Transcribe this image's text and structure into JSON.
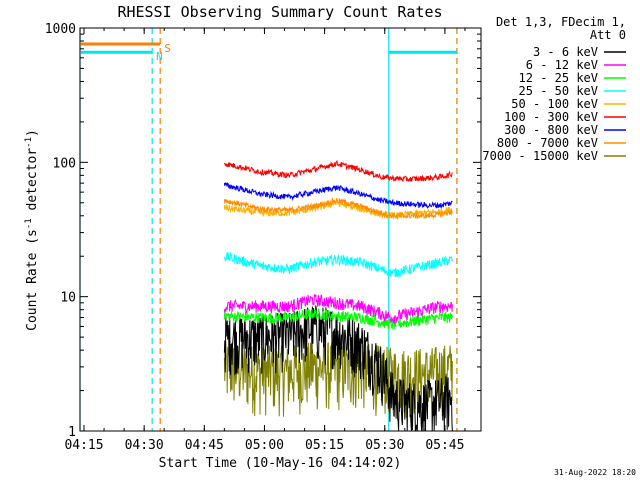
{
  "chart_data": {
    "type": "line",
    "title": "RHESSI Observing Summary Count Rates",
    "xlabel": "Start Time (10-May-16 04:14:02)",
    "ylabel": "Count Rate (s",
    "ylabel_sup": "-1",
    "ylabel_mid": " detector",
    "ylabel_end": ")",
    "yscale": "log",
    "xlim_minutes": [
      0,
      100
    ],
    "ylim": [
      1,
      1000
    ],
    "x_ticks": [
      {
        "label": "04:15",
        "minute": 1
      },
      {
        "label": "04:30",
        "minute": 16
      },
      {
        "label": "04:45",
        "minute": 31
      },
      {
        "label": "05:00",
        "minute": 46
      },
      {
        "label": "05:15",
        "minute": 61
      },
      {
        "label": "05:30",
        "minute": 76
      },
      {
        "label": "05:45",
        "minute": 91
      }
    ],
    "y_ticks": [
      {
        "label": "1",
        "value": 1
      },
      {
        "label": "10",
        "value": 10
      },
      {
        "label": "100",
        "value": 100
      },
      {
        "label": "1000",
        "value": 1000
      }
    ],
    "legend_header": [
      "Det 1,3, FDecim 1,",
      "Att 0"
    ],
    "legend_position": "right",
    "series": [
      {
        "name": "3 - 6 keV",
        "color": "#000000",
        "x": [
          36,
          45,
          52,
          58,
          64,
          70,
          75,
          78,
          82,
          86,
          90,
          93
        ],
        "y": [
          5,
          5,
          5.2,
          6,
          5.5,
          4.5,
          3,
          1.8,
          1.6,
          1.6,
          1.7,
          1.8
        ]
      },
      {
        "name": "6 - 12 keV",
        "color": "#ff00ff",
        "x": [
          36,
          45,
          52,
          58,
          64,
          70,
          75,
          78,
          82,
          86,
          90,
          93
        ],
        "y": [
          8.5,
          8.5,
          8.5,
          9.5,
          9,
          8.5,
          7.5,
          7,
          7.5,
          8,
          8.5,
          8.5
        ]
      },
      {
        "name": "12 - 25 keV",
        "color": "#00ff00",
        "x": [
          36,
          45,
          52,
          58,
          64,
          70,
          75,
          78,
          82,
          86,
          90,
          93
        ],
        "y": [
          7.2,
          7,
          7,
          7.5,
          7.2,
          7,
          6.5,
          6.2,
          6.5,
          6.8,
          7,
          7
        ]
      },
      {
        "name": "25 - 50 keV",
        "color": "#00ffff",
        "x": [
          36,
          45,
          52,
          58,
          64,
          70,
          75,
          78,
          82,
          86,
          90,
          93
        ],
        "y": [
          20,
          17,
          16,
          18,
          19,
          18,
          16,
          15,
          16,
          17,
          18,
          19
        ]
      },
      {
        "name": "50 - 100 keV",
        "color": "#ffb000",
        "x": [
          36,
          45,
          52,
          58,
          64,
          70,
          75,
          78,
          82,
          86,
          90,
          93
        ],
        "y": [
          46,
          42,
          42,
          45,
          50,
          45,
          41,
          40,
          41,
          42,
          43,
          45
        ]
      },
      {
        "name": "100 - 300 keV",
        "color": "#ff0000",
        "x": [
          36,
          45,
          52,
          58,
          64,
          70,
          75,
          78,
          82,
          86,
          90,
          93
        ],
        "y": [
          98,
          85,
          80,
          88,
          98,
          88,
          78,
          76,
          75,
          76,
          78,
          82
        ]
      },
      {
        "name": "300 - 800 keV",
        "color": "#0000ff",
        "x": [
          36,
          45,
          52,
          58,
          64,
          70,
          75,
          78,
          82,
          86,
          90,
          93
        ],
        "y": [
          68,
          58,
          55,
          60,
          65,
          58,
          52,
          50,
          49,
          48,
          48,
          50
        ]
      },
      {
        "name": "800 - 7000 keV",
        "color": "#ff8c00",
        "x": [
          36,
          45,
          52,
          58,
          64,
          70,
          75,
          78,
          82,
          86,
          90,
          93
        ],
        "y": [
          52,
          45,
          44,
          47,
          52,
          47,
          42,
          40,
          40,
          40,
          41,
          43
        ]
      },
      {
        "name": "7000 - 15000 keV",
        "color": "#808000",
        "x": [
          36,
          45,
          52,
          58,
          64,
          70,
          75,
          78,
          82,
          86,
          90,
          93
        ],
        "y": [
          3,
          2.8,
          2.8,
          3,
          3,
          3,
          2.8,
          2.7,
          2.7,
          2.7,
          2.8,
          3
        ]
      }
    ],
    "flags": [
      {
        "label": "S",
        "color": "#ff7f00",
        "level": 760,
        "x_start": 0,
        "x_end": 20
      },
      {
        "label": "N",
        "color": "#00e5e5",
        "level": 660,
        "x_start": 0,
        "x_end": 18,
        "x_start2": 77,
        "x_end2": 94
      }
    ],
    "markers": [
      {
        "color": "#00e5e5",
        "style": "solid",
        "x": 0
      },
      {
        "color": "#00e5e5",
        "style": "dashed",
        "x": 18
      },
      {
        "color": "#ff7f00",
        "style": "dashed",
        "x": 20
      },
      {
        "color": "#00e5e5",
        "style": "solid",
        "x": 77
      },
      {
        "color": "#00e5e5",
        "style": "dashed",
        "x": 94
      },
      {
        "color": "#ff7f00",
        "style": "dashed",
        "x": 94
      }
    ],
    "footer_date": "31-Aug-2022 18:20"
  }
}
